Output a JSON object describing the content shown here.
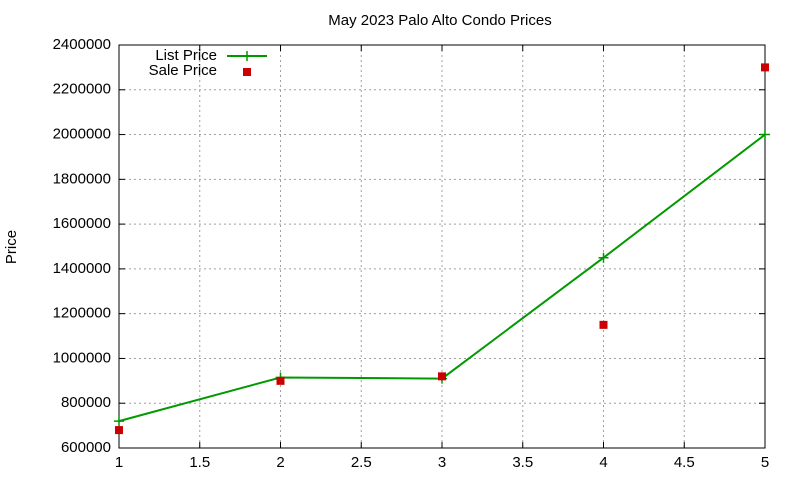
{
  "chart_data": {
    "type": "line",
    "title": "May 2023 Palo Alto Condo Prices",
    "y_label": "Price",
    "x": [
      1,
      2,
      3,
      4,
      5
    ],
    "series": [
      {
        "name": "List Price",
        "color": "#009900",
        "mode": "linespoints",
        "values": [
          720000,
          915000,
          910000,
          1450000,
          2000000
        ]
      },
      {
        "name": "Sale Price",
        "color": "#cc0000",
        "mode": "points",
        "values": [
          680000,
          900000,
          920000,
          1150000,
          2300000
        ]
      }
    ],
    "xlim": [
      1,
      5
    ],
    "xticks": [
      1,
      1.5,
      2,
      2.5,
      3,
      3.5,
      4,
      4.5,
      5
    ],
    "ylim": [
      600000,
      2400000
    ],
    "yticks": [
      600000,
      800000,
      1000000,
      1200000,
      1400000,
      1600000,
      1800000,
      2000000,
      2200000,
      2400000
    ],
    "grid": true,
    "legend": "top-left"
  }
}
